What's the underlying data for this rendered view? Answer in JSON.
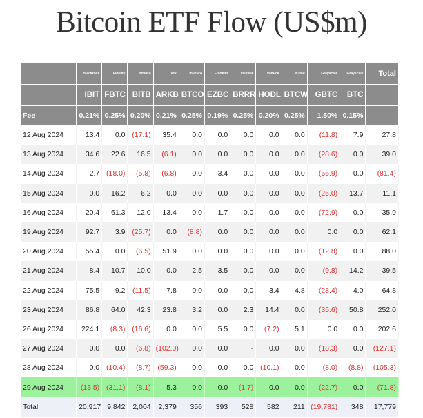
{
  "title": "Bitcoin ETF Flow (US$m)",
  "issuers": [
    "Blackrock",
    "Fidelity",
    "Bitwise",
    "Ark",
    "Invesco",
    "Franklin",
    "Valkyrie",
    "VanEck",
    "WTree",
    "Grayscale",
    "Grayscale"
  ],
  "total_header": "Total",
  "tickers": [
    "IBIT",
    "FBTC",
    "BITB",
    "ARKB",
    "BTCO",
    "EZBC",
    "BRRR",
    "HODL",
    "BTCW",
    "GBTC",
    "BTC"
  ],
  "fee_label": "Fee",
  "fees": [
    "0.21%",
    "0.25%",
    "0.20%",
    "0.21%",
    "0.25%",
    "0.19%",
    "0.25%",
    "0.20%",
    "0.25%",
    "1.50%",
    "0.15%"
  ],
  "rows": [
    {
      "date": "12 Aug 2024",
      "values": [
        "13.4",
        "0.0",
        "(17.1)",
        "35.4",
        "0.0",
        "0.0",
        "0.0",
        "0.0",
        "0.0",
        "(11.8)",
        "7.9"
      ],
      "total": "27.8"
    },
    {
      "date": "13 Aug 2024",
      "values": [
        "34.6",
        "22.6",
        "16.5",
        "(6.1)",
        "0.0",
        "0.0",
        "0.0",
        "0.0",
        "0.0",
        "(28.6)",
        "0.0"
      ],
      "total": "39.0"
    },
    {
      "date": "14 Aug 2024",
      "values": [
        "2.7",
        "(18.0)",
        "(5.8)",
        "(6.8)",
        "0.0",
        "3.4",
        "0.0",
        "0.0",
        "0.0",
        "(56.9)",
        "0.0"
      ],
      "total": "(81.4)"
    },
    {
      "date": "15 Aug 2024",
      "values": [
        "0.0",
        "16.2",
        "6.2",
        "0.0",
        "0.0",
        "0.0",
        "0.0",
        "0.0",
        "0.0",
        "(25.0)",
        "13.7"
      ],
      "total": "11.1"
    },
    {
      "date": "16 Aug 2024",
      "values": [
        "20.4",
        "61.3",
        "12.0",
        "13.4",
        "0.0",
        "1.7",
        "0.0",
        "0.0",
        "0.0",
        "(72.9)",
        "0.0"
      ],
      "total": "35.9"
    },
    {
      "date": "19 Aug 2024",
      "values": [
        "92.7",
        "3.9",
        "(25.7)",
        "0.0",
        "(8.8)",
        "0.0",
        "0.0",
        "0.0",
        "0.0",
        "0.0",
        "0.0"
      ],
      "total": "62.1"
    },
    {
      "date": "20 Aug 2024",
      "values": [
        "55.4",
        "0.0",
        "(6.5)",
        "51.9",
        "0.0",
        "0.0",
        "0.0",
        "0.0",
        "0.0",
        "(12.8)",
        "0.0"
      ],
      "total": "88.0"
    },
    {
      "date": "21 Aug 2024",
      "values": [
        "8.4",
        "10.7",
        "10.0",
        "0.0",
        "2.5",
        "3.5",
        "0.0",
        "0.0",
        "0.0",
        "(9.8)",
        "14.2"
      ],
      "total": "39.5"
    },
    {
      "date": "22 Aug 2024",
      "values": [
        "75.5",
        "9.2",
        "(11.5)",
        "7.8",
        "0.0",
        "0.0",
        "0.0",
        "3.4",
        "4.8",
        "(28.4)",
        "4.0"
      ],
      "total": "64.8"
    },
    {
      "date": "23 Aug 2024",
      "values": [
        "86.8",
        "64.0",
        "42.3",
        "23.8",
        "3.2",
        "0.0",
        "2.3",
        "14.4",
        "0.0",
        "(35.6)",
        "50.8"
      ],
      "total": "252.0"
    },
    {
      "date": "26 Aug 2024",
      "values": [
        "224.1",
        "(8.3)",
        "(16.6)",
        "0.0",
        "0.0",
        "5.5",
        "0.0",
        "(7.2)",
        "5.1",
        "0.0",
        "0.0"
      ],
      "total": "202.6"
    },
    {
      "date": "27 Aug 2024",
      "values": [
        "0.0",
        "0.0",
        "(6.8)",
        "(102.0)",
        "0.0",
        "0.0",
        "-",
        "0.0",
        "0.0",
        "(18.3)",
        "0.0"
      ],
      "total": "(127.1)"
    },
    {
      "date": "28 Aug 2024",
      "values": [
        "0.0",
        "(10.4)",
        "(8.7)",
        "(59.3)",
        "0.0",
        "0.0",
        "0.0",
        "(10.1)",
        "0.0",
        "(8.0)",
        "(8.8)"
      ],
      "total": "(105.3)"
    },
    {
      "date": "29 Aug 2024",
      "values": [
        "(13.5)",
        "(31.1)",
        "(8.1)",
        "5.3",
        "0.0",
        "0.0",
        "(1.7)",
        "0.0",
        "0.0",
        "(22.7)",
        "0.0"
      ],
      "total": "(71.8)",
      "highlight": true
    }
  ],
  "total_row": {
    "label": "Total",
    "values": [
      "20,917",
      "9,842",
      "2,004",
      "2,379",
      "356",
      "393",
      "528",
      "582",
      "211",
      "(19,781)",
      "348"
    ],
    "total": "17,779"
  },
  "colors": {
    "header_bg": "#8c8c8c",
    "stripe_bg": "#f1f1f1",
    "highlight_bg": "#9cf29c",
    "total_bg": "#eef0f8",
    "negative": "#e03030"
  }
}
